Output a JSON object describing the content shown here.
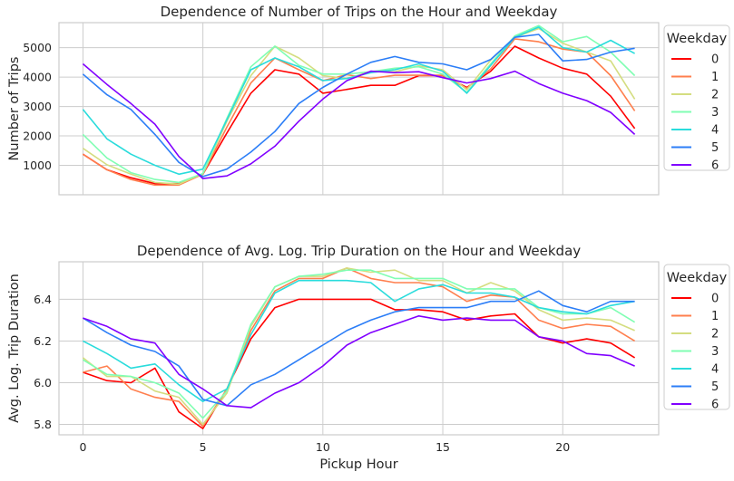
{
  "chart_data": [
    {
      "type": "line",
      "title": "Dependence of Number of Trips on the Hour and Weekday",
      "xlabel": "",
      "ylabel": "Number of Trips",
      "xlim": [
        -1,
        24
      ],
      "ylim": [
        0,
        5850
      ],
      "xticks": [
        0,
        5,
        10,
        15,
        20
      ],
      "yticks": [
        1000,
        2000,
        3000,
        4000,
        5000
      ],
      "show_xticklabels": false,
      "grid": true,
      "legend": {
        "title": "Weekday",
        "placement": "outside-right"
      },
      "x": [
        0,
        1,
        2,
        3,
        4,
        5,
        6,
        7,
        8,
        9,
        10,
        11,
        12,
        13,
        14,
        15,
        16,
        17,
        18,
        19,
        20,
        21,
        22,
        23
      ],
      "series": [
        {
          "name": "0",
          "color": "#ff0000",
          "values": [
            1380,
            850,
            580,
            380,
            380,
            700,
            2100,
            3450,
            4250,
            4100,
            3450,
            3580,
            3720,
            3720,
            4050,
            4050,
            3650,
            4200,
            5050,
            4650,
            4300,
            4100,
            3350,
            2250
          ]
        },
        {
          "name": "1",
          "color": "#ff7f4e",
          "values": [
            1380,
            850,
            520,
            330,
            330,
            700,
            2300,
            3800,
            4650,
            4250,
            3880,
            4080,
            3950,
            4060,
            4060,
            4060,
            3620,
            4280,
            5300,
            5200,
            4950,
            4850,
            4050,
            2850
          ]
        },
        {
          "name": "2",
          "color": "#d4dd80",
          "values": [
            1580,
            1020,
            700,
            420,
            360,
            720,
            2500,
            4050,
            5050,
            4650,
            4050,
            3950,
            4180,
            4180,
            4380,
            4250,
            3570,
            4580,
            5350,
            5650,
            5150,
            4850,
            4550,
            3250
          ]
        },
        {
          "name": "3",
          "color": "#80feb3",
          "values": [
            2050,
            1250,
            750,
            520,
            420,
            720,
            2600,
            4350,
            5050,
            4400,
            4100,
            4100,
            4180,
            4300,
            4350,
            4100,
            3480,
            4450,
            5400,
            5750,
            5200,
            5380,
            4850,
            4050
          ]
        },
        {
          "name": "4",
          "color": "#2adcdc",
          "values": [
            2900,
            1900,
            1380,
            1000,
            700,
            870,
            2550,
            4250,
            4650,
            4350,
            3880,
            3950,
            4150,
            4250,
            4450,
            4200,
            3450,
            4400,
            5350,
            5700,
            5000,
            4850,
            5250,
            4800
          ]
        },
        {
          "name": "5",
          "color": "#2c7ef7",
          "values": [
            4100,
            3400,
            2900,
            2050,
            1100,
            620,
            870,
            1450,
            2150,
            3100,
            3650,
            4100,
            4500,
            4700,
            4500,
            4450,
            4250,
            4600,
            5350,
            5450,
            4550,
            4600,
            4850,
            4980
          ]
        },
        {
          "name": "6",
          "color": "#8000ff",
          "values": [
            4450,
            3750,
            3100,
            2400,
            1300,
            550,
            640,
            1050,
            1650,
            2500,
            3250,
            3880,
            4200,
            4150,
            4180,
            3980,
            3800,
            3950,
            4200,
            3780,
            3450,
            3200,
            2800,
            2050
          ]
        }
      ]
    },
    {
      "type": "line",
      "title": "Dependence of Avg. Log. Trip Duration on the Hour and Weekday",
      "xlabel": "Pickup Hour",
      "ylabel": "Avg. Log. Trip Duration",
      "xlim": [
        -1,
        24
      ],
      "ylim": [
        5.75,
        6.58
      ],
      "xticks": [
        0,
        5,
        10,
        15,
        20
      ],
      "yticks": [
        5.8,
        6.0,
        6.2,
        6.4
      ],
      "ytick_labels": [
        "5.8",
        "6.0",
        "6.2",
        "6.4"
      ],
      "show_xticklabels": true,
      "grid": true,
      "legend": {
        "title": "Weekday",
        "placement": "outside-right"
      },
      "x": [
        0,
        1,
        2,
        3,
        4,
        5,
        6,
        7,
        8,
        9,
        10,
        11,
        12,
        13,
        14,
        15,
        16,
        17,
        18,
        19,
        20,
        21,
        22,
        23
      ],
      "series": [
        {
          "name": "0",
          "color": "#ff0000",
          "values": [
            6.05,
            6.01,
            6.0,
            6.07,
            5.86,
            5.78,
            5.97,
            6.21,
            6.36,
            6.4,
            6.4,
            6.4,
            6.4,
            6.35,
            6.35,
            6.34,
            6.3,
            6.32,
            6.33,
            6.22,
            6.19,
            6.21,
            6.19,
            6.12
          ]
        },
        {
          "name": "1",
          "color": "#ff7f4e",
          "values": [
            6.05,
            6.08,
            5.97,
            5.93,
            5.91,
            5.79,
            5.97,
            6.25,
            6.44,
            6.5,
            6.5,
            6.55,
            6.5,
            6.48,
            6.48,
            6.46,
            6.39,
            6.42,
            6.41,
            6.3,
            6.26,
            6.28,
            6.27,
            6.2
          ]
        },
        {
          "name": "2",
          "color": "#d4dd80",
          "values": [
            6.12,
            6.03,
            6.03,
            5.96,
            5.93,
            5.8,
            5.95,
            6.27,
            6.46,
            6.51,
            6.51,
            6.55,
            6.53,
            6.54,
            6.49,
            6.49,
            6.43,
            6.48,
            6.44,
            6.35,
            6.3,
            6.31,
            6.3,
            6.25
          ]
        },
        {
          "name": "3",
          "color": "#80feb3",
          "values": [
            6.11,
            6.04,
            6.03,
            6.0,
            5.95,
            5.83,
            5.96,
            6.28,
            6.46,
            6.51,
            6.52,
            6.54,
            6.54,
            6.5,
            6.5,
            6.5,
            6.45,
            6.45,
            6.45,
            6.36,
            6.33,
            6.33,
            6.36,
            6.29
          ]
        },
        {
          "name": "4",
          "color": "#2adcdc",
          "values": [
            6.2,
            6.14,
            6.07,
            6.09,
            5.99,
            5.91,
            5.97,
            6.23,
            6.43,
            6.49,
            6.49,
            6.49,
            6.48,
            6.39,
            6.45,
            6.47,
            6.43,
            6.43,
            6.41,
            6.36,
            6.34,
            6.33,
            6.37,
            6.39
          ]
        },
        {
          "name": "5",
          "color": "#2c7ef7",
          "values": [
            6.31,
            6.24,
            6.18,
            6.15,
            6.08,
            5.92,
            5.89,
            5.99,
            6.04,
            6.11,
            6.18,
            6.25,
            6.3,
            6.34,
            6.36,
            6.36,
            6.36,
            6.39,
            6.39,
            6.44,
            6.37,
            6.34,
            6.39,
            6.39
          ]
        },
        {
          "name": "6",
          "color": "#8000ff",
          "values": [
            6.31,
            6.27,
            6.21,
            6.19,
            6.04,
            5.97,
            5.89,
            5.88,
            5.95,
            6.0,
            6.08,
            6.18,
            6.24,
            6.28,
            6.32,
            6.3,
            6.31,
            6.3,
            6.3,
            6.22,
            6.2,
            6.14,
            6.13,
            6.08
          ]
        }
      ]
    }
  ]
}
